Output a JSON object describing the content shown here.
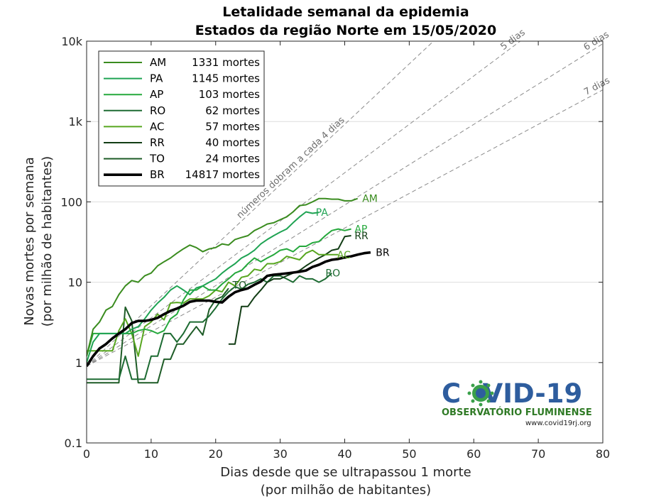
{
  "chart_data": {
    "type": "line",
    "title": "Letalidade semanal da epidemia",
    "subtitle": "Estados da região Norte em 15/05/2020",
    "xlabel": [
      "Dias desde que se ultrapassou 1 morte",
      "(por milhão de habitantes)"
    ],
    "ylabel": [
      "Novas mortes por semana",
      "(por milhão de habitantes)"
    ],
    "xlim": [
      0,
      80
    ],
    "ylim": [
      0.1,
      10000
    ],
    "yscale": "log",
    "grid": "horizontal",
    "legend_position": "top-left",
    "xticks": [
      "0",
      "10",
      "20",
      "30",
      "40",
      "50",
      "60",
      "70",
      "80"
    ],
    "yticks": [
      {
        "value": 0.1,
        "label": "0.1"
      },
      {
        "value": 1,
        "label": "1"
      },
      {
        "value": 10,
        "label": "10"
      },
      {
        "value": 100,
        "label": "100"
      },
      {
        "value": 1000,
        "label": "1k"
      },
      {
        "value": 10000,
        "label": "10k"
      }
    ],
    "doubling_guides": [
      {
        "days": 4,
        "label": "números dobram a cada 4 dias"
      },
      {
        "days": 5,
        "label": "5 dias"
      },
      {
        "days": 6,
        "label": "6 dias"
      },
      {
        "days": 7,
        "label": "7 dias"
      }
    ],
    "series": [
      {
        "name": "AM",
        "deaths": "1331 mortes",
        "color": "#3a8c1f",
        "width": 2,
        "x": [
          0,
          1,
          2,
          3,
          4,
          5,
          6,
          7,
          8,
          9,
          10,
          11,
          12,
          13,
          14,
          15,
          16,
          17,
          18,
          19,
          20,
          21,
          22,
          23,
          24,
          25,
          26,
          27,
          28,
          29,
          30,
          31,
          32,
          33,
          34,
          35,
          36,
          37,
          38,
          39,
          40,
          41,
          42
        ],
        "y": [
          1.2,
          2.6,
          3.2,
          4.5,
          5,
          7,
          9,
          10.5,
          10,
          12,
          13,
          16,
          18,
          20,
          23,
          26,
          29,
          27,
          24,
          26,
          27,
          30,
          29,
          34,
          36,
          38,
          44,
          48,
          53,
          55,
          60,
          65,
          75,
          90,
          92,
          100,
          110,
          110,
          108,
          108,
          103,
          103,
          110
        ]
      },
      {
        "name": "PA",
        "deaths": "1145 mortes",
        "color": "#1fa353",
        "width": 2,
        "x": [
          0,
          1,
          2,
          3,
          4,
          5,
          6,
          7,
          8,
          9,
          10,
          11,
          12,
          13,
          14,
          15,
          16,
          17,
          18,
          19,
          20,
          21,
          22,
          23,
          24,
          25,
          26,
          27,
          28,
          29,
          30,
          31,
          32,
          33,
          34,
          35,
          36
        ],
        "y": [
          1,
          1.8,
          2.3,
          2.3,
          2.3,
          2.3,
          2.3,
          2.6,
          2.8,
          3.5,
          4.5,
          5.5,
          6.5,
          8,
          9,
          8,
          7,
          8.5,
          9,
          10,
          11,
          13,
          15,
          17,
          20,
          22,
          25,
          30,
          34,
          38,
          42,
          46,
          55,
          65,
          75,
          72,
          74
        ]
      },
      {
        "name": "AP",
        "deaths": "103 mortes",
        "color": "#25a83c",
        "width": 2,
        "x": [
          0,
          1,
          2,
          3,
          4,
          5,
          6,
          7,
          8,
          9,
          10,
          11,
          12,
          13,
          14,
          15,
          16,
          17,
          18,
          19,
          20,
          21,
          22,
          23,
          24,
          25,
          26,
          27,
          28,
          29,
          30,
          31,
          32,
          33,
          34,
          35,
          36,
          37,
          38,
          39,
          40,
          41
        ],
        "y": [
          1.2,
          2.3,
          2.3,
          2.3,
          2.3,
          2.3,
          2.3,
          2.3,
          2.5,
          2.6,
          2.5,
          2.3,
          2.5,
          3.5,
          4,
          6,
          8,
          8,
          9,
          8,
          8,
          9.5,
          11,
          13,
          14,
          17,
          20,
          18,
          20,
          22,
          25,
          26,
          24,
          28,
          28,
          31,
          32,
          38,
          44,
          46,
          44,
          46
        ]
      },
      {
        "name": "RO",
        "deaths": "62 mortes",
        "color": "#1d6b32",
        "width": 2,
        "x": [
          0,
          1,
          2,
          3,
          4,
          5,
          6,
          7,
          8,
          9,
          10,
          11,
          12,
          13,
          14,
          15,
          16,
          17,
          18,
          19,
          20,
          21,
          22,
          23,
          24,
          25,
          26,
          27,
          28,
          29,
          30,
          31,
          32,
          33,
          34,
          35,
          36,
          37,
          38
        ],
        "y": [
          0.62,
          0.62,
          0.62,
          0.62,
          0.62,
          0.62,
          1.2,
          0.62,
          0.62,
          0.62,
          1.2,
          1.2,
          2.3,
          2.3,
          1.8,
          2.3,
          3.2,
          3.2,
          3.2,
          3.8,
          4.8,
          6.2,
          7.6,
          8.8,
          8.2,
          9.4,
          10,
          11,
          10,
          12,
          12,
          11,
          10,
          12,
          11,
          11,
          10,
          11,
          13
        ]
      },
      {
        "name": "AC",
        "deaths": "57 mortes",
        "color": "#57a61f",
        "width": 2,
        "x": [
          0,
          1,
          2,
          3,
          4,
          5,
          6,
          7,
          8,
          9,
          10,
          11,
          12,
          13,
          14,
          15,
          16,
          17,
          18,
          19,
          20,
          21,
          22,
          23,
          24,
          25,
          26,
          27,
          28,
          29,
          30,
          31,
          32,
          33,
          34,
          35,
          36,
          37,
          38,
          39
        ],
        "y": [
          1.4,
          1.4,
          1.4,
          1.4,
          1.4,
          2.5,
          3.5,
          2.3,
          1.2,
          2.8,
          3.2,
          4,
          3.4,
          5.5,
          5.6,
          5.5,
          6.2,
          6.2,
          6.2,
          6.8,
          8,
          7.6,
          10,
          9,
          11.5,
          12,
          14.5,
          14,
          17,
          17,
          18,
          21,
          20,
          19,
          23,
          25,
          22,
          22,
          22,
          22
        ]
      },
      {
        "name": "RR",
        "deaths": "40 mortes",
        "color": "#123d15",
        "width": 2,
        "x": [
          22,
          23,
          24,
          25,
          26,
          27,
          28,
          29,
          30,
          31,
          32,
          33,
          34,
          35,
          36,
          37,
          38,
          39,
          40,
          41
        ],
        "y": [
          1.7,
          1.7,
          5,
          5,
          6.5,
          8,
          10,
          11,
          11,
          12,
          13,
          14,
          16,
          18,
          20,
          22,
          25,
          26,
          37,
          38
        ]
      },
      {
        "name": "TO",
        "deaths": "24 mortes",
        "color": "#1e5c27",
        "width": 2,
        "x": [
          0,
          1,
          2,
          3,
          4,
          5,
          6,
          7,
          8,
          9,
          10,
          11,
          12,
          13,
          14,
          15,
          16,
          17,
          18,
          19,
          20,
          21,
          22
        ],
        "y": [
          0.56,
          0.56,
          0.56,
          0.56,
          0.56,
          0.56,
          4.9,
          3.3,
          0.56,
          0.56,
          0.56,
          0.56,
          1.1,
          1.1,
          1.7,
          1.7,
          2.2,
          2.8,
          2.2,
          4.6,
          6.1,
          6.6,
          8.4
        ]
      },
      {
        "name": "BR",
        "deaths": "14817 mortes",
        "color": "#000000",
        "width": 3.6,
        "x": [
          0,
          1,
          2,
          3,
          4,
          5,
          6,
          7,
          8,
          9,
          10,
          11,
          12,
          13,
          14,
          15,
          16,
          17,
          18,
          19,
          20,
          21,
          22,
          23,
          24,
          25,
          26,
          27,
          28,
          29,
          30,
          31,
          32,
          33,
          34,
          35,
          36,
          37,
          38,
          39,
          40,
          41,
          42,
          43,
          44
        ],
        "y": [
          0.9,
          1.2,
          1.5,
          1.7,
          2,
          2.3,
          2.6,
          3.1,
          3.3,
          3.3,
          3.4,
          3.6,
          4,
          4.4,
          4.7,
          5.1,
          5.7,
          5.9,
          5.9,
          5.9,
          5.7,
          5.6,
          6.6,
          7.5,
          8,
          8.4,
          9.3,
          10.2,
          12,
          12.4,
          12.6,
          12.9,
          13.2,
          13.5,
          14,
          15.5,
          16.5,
          18,
          19,
          19.5,
          20.3,
          21,
          22,
          23,
          23.5
        ]
      }
    ],
    "series_label_pos": {
      "AM": [
        42.5,
        110
      ],
      "PA": [
        35.3,
        74
      ],
      "AP": [
        41.3,
        46
      ],
      "RO": [
        36.8,
        13
      ],
      "AC": [
        38.6,
        22
      ],
      "RR": [
        41.3,
        38
      ],
      "TO": [
        22.4,
        9.2
      ],
      "BR": [
        44.6,
        23.5
      ]
    }
  },
  "logo": {
    "title": "COVID-19",
    "subtitle": "OBSERVATÓRIO FLUMINENSE",
    "url": "www.covid19rj.org"
  }
}
